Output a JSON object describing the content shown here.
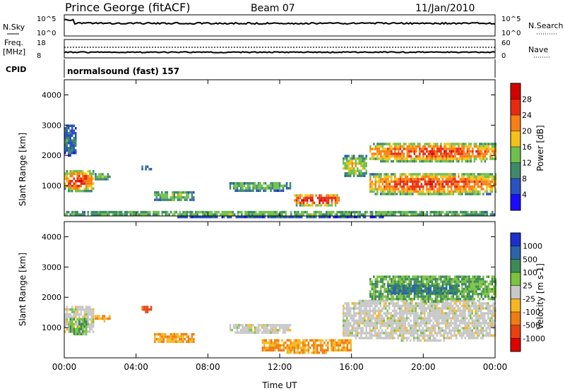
{
  "header": {
    "station": "Prince George (fitACF)",
    "beam": "Beam 07",
    "date": "11/Jan/2010"
  },
  "strip_nsky": {
    "left_label": "N.Sky",
    "right_label": "N.Search",
    "left_ticks": [
      "10^5",
      "10^0"
    ],
    "right_ticks": [
      "10^5",
      "10^0"
    ]
  },
  "strip_freq": {
    "left_label_1": "Freq.",
    "left_label_2": "[MHz]",
    "right_label": "Nave",
    "left_ticks": [
      "18",
      "8"
    ],
    "right_ticks": [
      "60",
      "0"
    ]
  },
  "cpid": {
    "label": "CPID",
    "value": "normalsound (fast) 157"
  },
  "x_axis": {
    "label": "Time UT",
    "ticks": [
      "00:00",
      "04:00",
      "08:00",
      "12:00",
      "16:00",
      "20:00",
      "00:00"
    ]
  },
  "y_axis": {
    "label": "Slant Range [km]",
    "ticks": [
      "1000",
      "2000",
      "3000",
      "4000"
    ]
  },
  "power_bar": {
    "label": "Power [dB]",
    "ticks": [
      "4",
      "8",
      "12",
      "16",
      "20",
      "24",
      "28"
    ],
    "colors": [
      "#1c0cff",
      "#2a52c0",
      "#3e8a6a",
      "#6fc04a",
      "#f2c21a",
      "#f77f14",
      "#ea2a0f",
      "#d40000"
    ]
  },
  "velocity_bar": {
    "label": "Velocity [m s-1]",
    "ticks": [
      "1000",
      "500",
      "100",
      "25",
      "-25",
      "-100",
      "-500",
      "-1000"
    ],
    "colors": [
      "#1c2ecc",
      "#2b64a8",
      "#3b8a58",
      "#7cc23e",
      "#c8c8c8",
      "#f5b820",
      "#f07c14",
      "#e84010",
      "#e00000"
    ]
  },
  "chart_data": [
    {
      "type": "heatmap",
      "title": "Power",
      "xlabel": "Time UT",
      "ylabel": "Slant Range [km]",
      "xlim": [
        0,
        24
      ],
      "ylim": [
        0,
        4500
      ],
      "colorbar_label": "Power [dB]",
      "regions": [
        {
          "t0": 0.0,
          "t1": 1.6,
          "r0": 800,
          "r1": 1600,
          "level": 24
        },
        {
          "t0": 0.0,
          "t1": 0.6,
          "r0": 2000,
          "r1": 3100,
          "level": 8
        },
        {
          "t0": 1.7,
          "t1": 2.5,
          "r0": 1200,
          "r1": 1500,
          "level": 12
        },
        {
          "t0": 4.3,
          "t1": 4.8,
          "r0": 1550,
          "r1": 1750,
          "level": 8
        },
        {
          "t0": 5.0,
          "t1": 7.2,
          "r0": 500,
          "r1": 900,
          "level": 12
        },
        {
          "t0": 9.2,
          "t1": 12.6,
          "r0": 850,
          "r1": 1200,
          "level": 12
        },
        {
          "t0": 12.8,
          "t1": 15.3,
          "r0": 350,
          "r1": 800,
          "level": 28
        },
        {
          "t0": 15.5,
          "t1": 16.8,
          "r0": 1300,
          "r1": 2100,
          "level": 16
        },
        {
          "t0": 17.0,
          "t1": 24.0,
          "r0": 1800,
          "r1": 2500,
          "level": 24
        },
        {
          "t0": 17.0,
          "t1": 24.0,
          "r0": 700,
          "r1": 1500,
          "level": 24
        },
        {
          "t0": 0.0,
          "t1": 24.0,
          "r0": 0,
          "r1": 250,
          "level": 12
        }
      ]
    },
    {
      "type": "heatmap",
      "title": "Velocity",
      "xlabel": "Time UT",
      "ylabel": "Slant Range [km]",
      "xlim": [
        0,
        24
      ],
      "ylim": [
        0,
        4500
      ],
      "colorbar_label": "Velocity [m s-1]",
      "regions": [
        {
          "t0": 0.0,
          "t1": 1.6,
          "r0": 800,
          "r1": 1800,
          "velocity": 0
        },
        {
          "t0": 0.3,
          "t1": 1.2,
          "r0": 800,
          "r1": 1400,
          "velocity": 100
        },
        {
          "t0": 1.7,
          "t1": 2.5,
          "r0": 1250,
          "r1": 1500,
          "velocity": -100
        },
        {
          "t0": 4.3,
          "t1": 4.8,
          "r0": 1550,
          "r1": 1800,
          "velocity": -500
        },
        {
          "t0": 5.0,
          "t1": 7.2,
          "r0": 500,
          "r1": 900,
          "velocity": -100
        },
        {
          "t0": 9.2,
          "t1": 12.6,
          "r0": 850,
          "r1": 1200,
          "velocity": 0
        },
        {
          "t0": 11.0,
          "t1": 16.0,
          "r0": 200,
          "r1": 700,
          "velocity": -100
        },
        {
          "t0": 15.5,
          "t1": 24.0,
          "r0": 600,
          "r1": 2000,
          "velocity": 0
        },
        {
          "t0": 17.0,
          "t1": 24.0,
          "r0": 1900,
          "r1": 2800,
          "velocity": 100
        },
        {
          "t0": 18.0,
          "t1": 22.0,
          "r0": 2100,
          "r1": 2500,
          "velocity": 500
        }
      ]
    }
  ]
}
